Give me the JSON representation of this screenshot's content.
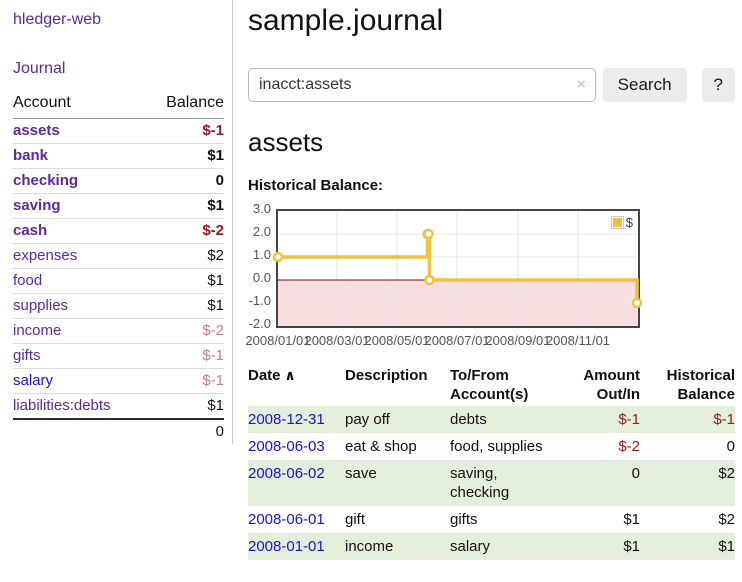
{
  "brand": "hledger-web",
  "sidebar": {
    "journal_link": "Journal",
    "header": {
      "account": "Account",
      "balance": "Balance"
    },
    "accounts": [
      {
        "name": "assets",
        "depth": 1,
        "bold": true,
        "link_color": "purple",
        "balance": "$-1",
        "balance_style": "strongneg"
      },
      {
        "name": "bank",
        "depth": 2,
        "bold": true,
        "link_color": "purple",
        "balance": "$1",
        "balance_style": "pos"
      },
      {
        "name": "checking",
        "depth": 3,
        "bold": true,
        "link_color": "purple",
        "balance": "0",
        "balance_style": "pos"
      },
      {
        "name": "saving",
        "depth": 3,
        "bold": true,
        "link_color": "purple",
        "balance": "$1",
        "balance_style": "pos"
      },
      {
        "name": "cash",
        "depth": 2,
        "bold": true,
        "link_color": "purple",
        "balance": "$-2",
        "balance_style": "strongneg"
      },
      {
        "name": "expenses",
        "depth": 1,
        "bold": false,
        "link_color": "purple",
        "balance": "$2",
        "balance_style": "pos"
      },
      {
        "name": "food",
        "depth": 2,
        "bold": false,
        "link_color": "purple",
        "balance": "$1",
        "balance_style": "pos"
      },
      {
        "name": "supplies",
        "depth": 2,
        "bold": false,
        "link_color": "purple",
        "balance": "$1",
        "balance_style": "pos"
      },
      {
        "name": "income",
        "depth": 1,
        "bold": false,
        "link_color": "purple",
        "balance": "$-2",
        "balance_style": "softneg"
      },
      {
        "name": "gifts",
        "depth": 2,
        "bold": false,
        "link_color": "purple",
        "balance": "$-1",
        "balance_style": "softneg"
      },
      {
        "name": "salary",
        "depth": 2,
        "bold": false,
        "link_color": "blue",
        "balance": "$-1",
        "balance_style": "softneg"
      },
      {
        "name": "liabilities:debts",
        "depth": 1,
        "bold": false,
        "link_color": "purple",
        "balance": "$1",
        "balance_style": "pos"
      }
    ],
    "total": "0"
  },
  "main": {
    "title": "sample.journal",
    "search": {
      "value": "inacct:assets",
      "clear_icon": "×",
      "button_label": "Search",
      "help_label": "?"
    },
    "account_heading": "assets"
  },
  "chart_data": {
    "type": "line",
    "title": "Historical Balance:",
    "legend": "$",
    "legend_position": "top-right",
    "series": [
      {
        "name": "$",
        "color": "#edc240",
        "steps": true,
        "points": [
          [
            "2008-01-01",
            1
          ],
          [
            "2008-06-01",
            2
          ],
          [
            "2008-06-02",
            2
          ],
          [
            "2008-06-03",
            0
          ],
          [
            "2008-12-31",
            -1
          ]
        ]
      }
    ],
    "x_ticks": [
      "2008/01/01",
      "2008/03/01",
      "2008/05/01",
      "2008/07/01",
      "2008/09/01",
      "2008/11/01"
    ],
    "y_ticks": [
      "3.0",
      "2.0",
      "1.0",
      "0.0",
      "-1.0",
      "-2.0"
    ],
    "ylim": [
      -2,
      3
    ],
    "xlim": [
      "2008-01-01",
      "2009-01-01"
    ],
    "grid": true,
    "negative_region_fill": "#f8dede",
    "zero_line_color": "#8b0000"
  },
  "register": {
    "sort_icon": "∧",
    "headers": [
      {
        "line1": "Date",
        "line2": "",
        "align": "left",
        "sortable": true
      },
      {
        "line1": "Description",
        "line2": "",
        "align": "left"
      },
      {
        "line1": "To/From",
        "line2": "Account(s)",
        "align": "left"
      },
      {
        "line1": "Amount",
        "line2": "Out/In",
        "align": "right"
      },
      {
        "line1": "Historical",
        "line2": "Balance",
        "align": "right"
      }
    ],
    "rows": [
      {
        "date": "2008-12-31",
        "description": "pay off",
        "accounts": "debts",
        "amount": "$-1",
        "amount_neg": true,
        "balance": "$-1",
        "balance_neg": true,
        "shaded": true
      },
      {
        "date": "2008-06-03",
        "description": "eat & shop",
        "accounts": "food, supplies",
        "amount": "$-2",
        "amount_neg": true,
        "balance": "0",
        "balance_neg": false,
        "shaded": false
      },
      {
        "date": "2008-06-02",
        "description": "save",
        "accounts": "saving,\nchecking",
        "amount": "0",
        "amount_neg": false,
        "balance": "$2",
        "balance_neg": false,
        "shaded": true
      },
      {
        "date": "2008-06-01",
        "description": "gift",
        "accounts": "gifts",
        "amount": "$1",
        "amount_neg": false,
        "balance": "$2",
        "balance_neg": false,
        "shaded": false
      },
      {
        "date": "2008-01-01",
        "description": "income",
        "accounts": "salary",
        "amount": "$1",
        "amount_neg": false,
        "balance": "$1",
        "balance_neg": false,
        "shaded": true
      }
    ]
  }
}
